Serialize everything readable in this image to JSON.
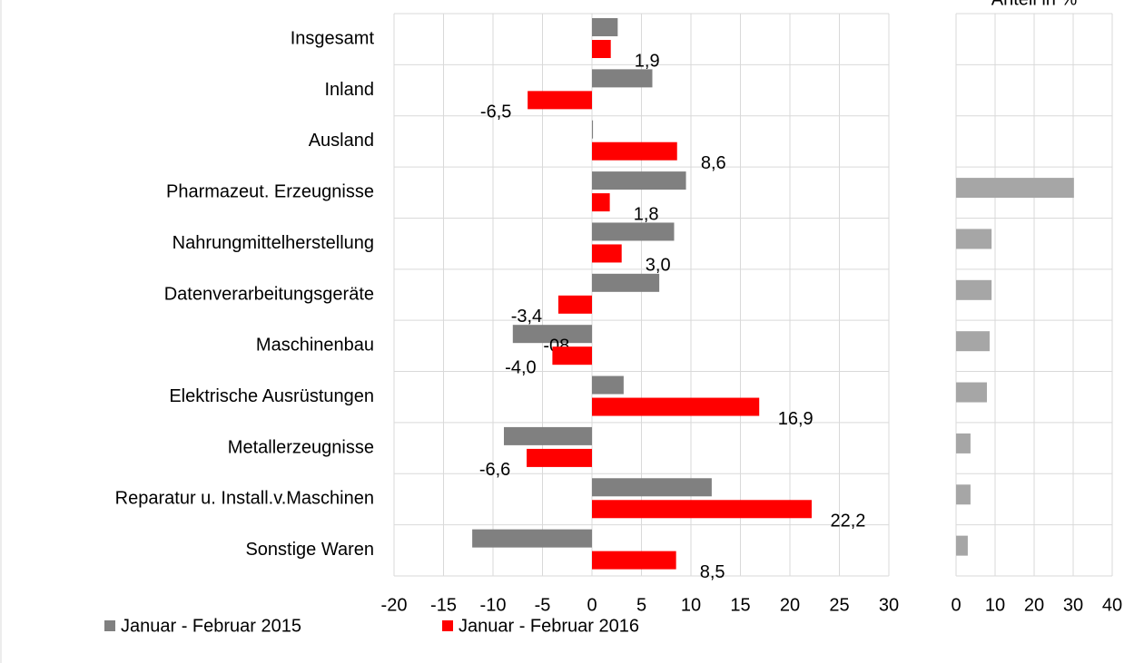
{
  "chart_data": [
    {
      "type": "hbar",
      "categories": [
        "Insgesamt ",
        "Inland",
        "Ausland",
        "Pharmazeut. Erzeugnisse",
        "Nahrungmittelherstellung",
        "Datenverarbeitungsgeräte",
        "Maschinenbau",
        "Elektrische Ausrüstungen",
        "Metallerzeugnisse",
        "Reparatur u. Install.v.Maschinen",
        "Sonstige Waren"
      ],
      "series": [
        {
          "name": "Januar - Februar 2015",
          "color": "#808080",
          "values": [
            2.6,
            6.1,
            0.1,
            9.5,
            8.3,
            6.8,
            -8,
            3.2,
            -8.9,
            12.1,
            -12.1
          ],
          "value_labels": [
            null,
            null,
            null,
            null,
            null,
            null,
            "-08",
            null,
            null,
            null,
            null
          ]
        },
        {
          "name": "Januar - Februar 2016",
          "color": "#ff0000",
          "values": [
            1.9,
            -6.5,
            8.6,
            1.8,
            3.0,
            -3.4,
            -4.0,
            16.9,
            -6.6,
            22.2,
            8.5
          ],
          "value_labels": [
            "1,9",
            "-6,5",
            "8,6",
            "1,8",
            "3,0",
            "-3,4",
            "-4,0",
            "16,9",
            "-6,6",
            "22,2",
            "8,5"
          ]
        }
      ],
      "xlim": [
        -20,
        30
      ],
      "xticks": [
        -20,
        -15,
        -10,
        -5,
        0,
        5,
        10,
        15,
        20,
        25,
        30
      ],
      "grid": true,
      "legend": "bottom"
    },
    {
      "type": "hbar",
      "title": "Anteil in %",
      "color": "#a6a6a6",
      "values": [
        null,
        null,
        null,
        30.2,
        9.1,
        9.1,
        8.6,
        7.9,
        3.7,
        3.7,
        3.0
      ],
      "xlim": [
        0,
        40
      ],
      "xticks": [
        0,
        10,
        20,
        30,
        40
      ],
      "grid": true
    }
  ]
}
